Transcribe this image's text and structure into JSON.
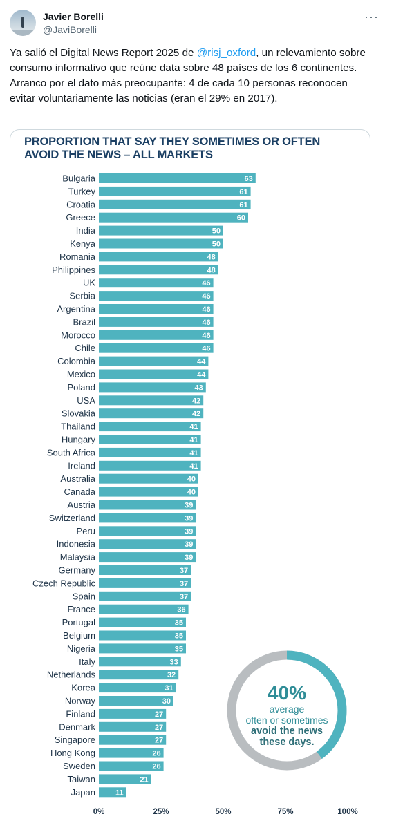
{
  "post": {
    "author_name": "Javier Borelli",
    "author_handle": "@JaviBorelli",
    "more_label": "···",
    "text_before": "Ya salió el Digital News Report 2025 de ",
    "mention": "@risj_oxford",
    "text_after": ", un relevamiento sobre consumo informativo que reúne data sobre 48 países de los 6 continentes. Arranco por el dato más preocupante: 4 de cada 10 personas reconocen evitar voluntariamente las noticias (eran el 29% en 2017)."
  },
  "colors": {
    "bar": "#4fb3bf",
    "title": "#1b3f63",
    "ring_grey": "#b9bdc0",
    "ring_teal": "#4fb3bf"
  },
  "chart_data": {
    "type": "bar",
    "orientation": "horizontal",
    "title": "PROPORTION THAT SAY THEY SOMETIMES OR OFTEN AVOID THE NEWS – ALL MARKETS",
    "categories": [
      "Bulgaria",
      "Turkey",
      "Croatia",
      "Greece",
      "India",
      "Kenya",
      "Romania",
      "Philippines",
      "UK",
      "Serbia",
      "Argentina",
      "Brazil",
      "Morocco",
      "Chile",
      "Colombia",
      "Mexico",
      "Poland",
      "USA",
      "Slovakia",
      "Thailand",
      "Hungary",
      "South Africa",
      "Ireland",
      "Australia",
      "Canada",
      "Austria",
      "Switzerland",
      "Peru",
      "Indonesia",
      "Malaysia",
      "Germany",
      "Czech Republic",
      "Spain",
      "France",
      "Portugal",
      "Belgium",
      "Nigeria",
      "Italy",
      "Netherlands",
      "Korea",
      "Norway",
      "Finland",
      "Denmark",
      "Singapore",
      "Hong Kong",
      "Sweden",
      "Taiwan",
      "Japan"
    ],
    "values": [
      63,
      61,
      61,
      60,
      50,
      50,
      48,
      48,
      46,
      46,
      46,
      46,
      46,
      46,
      44,
      44,
      43,
      42,
      42,
      41,
      41,
      41,
      41,
      40,
      40,
      39,
      39,
      39,
      39,
      39,
      37,
      37,
      37,
      36,
      35,
      35,
      35,
      33,
      32,
      31,
      30,
      27,
      27,
      27,
      26,
      26,
      21,
      11
    ],
    "xlim": [
      0,
      100
    ],
    "xticks": [
      "0%",
      "25%",
      "50%",
      "75%",
      "100%"
    ],
    "grid": false,
    "annotation": {
      "value": 40,
      "percent_label": "40%",
      "line1": "average",
      "line2": "often or sometimes",
      "line3": "avoid the news",
      "line4": "these days."
    }
  }
}
